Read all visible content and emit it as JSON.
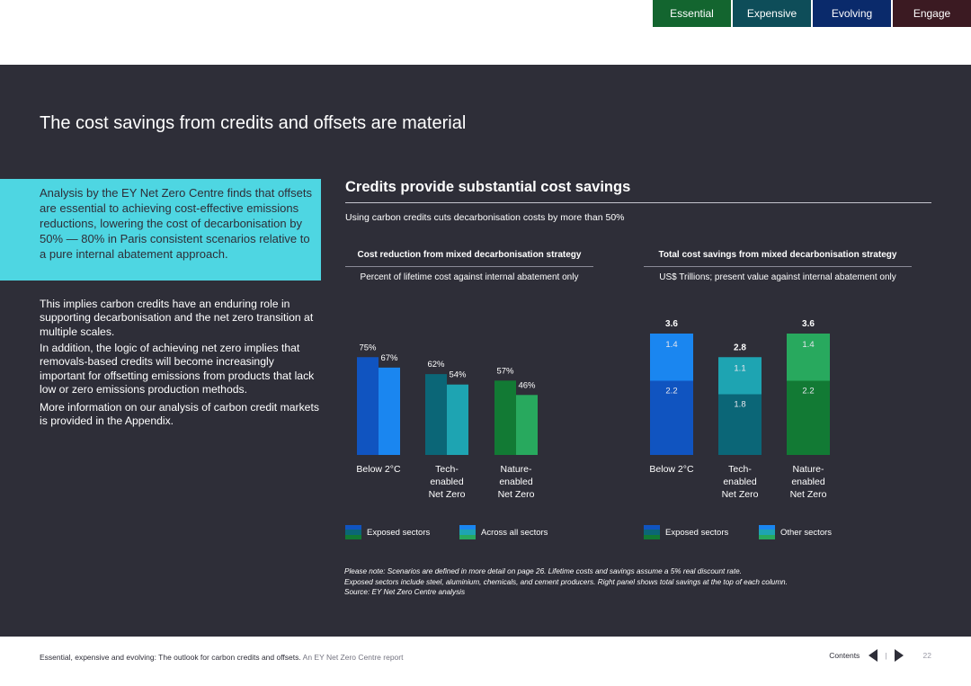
{
  "nav": {
    "tabs": [
      {
        "label": "Essential",
        "color": "#13652f"
      },
      {
        "label": "Expensive",
        "color": "#0e4d59"
      },
      {
        "label": "Evolving",
        "color": "#0a2a6b"
      },
      {
        "label": "Engage",
        "color": "#3b1a22"
      }
    ]
  },
  "page_title": "The cost savings from credits and offsets are material",
  "highlight_text": "Analysis by the EY Net Zero Centre finds that offsets are essential to achieving cost-effective emissions reductions, lowering the cost of decarbonisation by 50% — 80% in Paris consistent scenarios relative to a pure internal abatement approach.",
  "body_paragraphs": [
    "This implies carbon credits have an enduring role in supporting decarbonisation and the net zero transition at multiple scales.",
    "In addition, the logic of achieving net zero implies that removals-based credits will become increasingly important for offsetting emissions from products that lack low or zero emissions production methods.",
    "More information on our analysis of carbon credit markets is provided in the Appendix."
  ],
  "chart_section": {
    "heading": "Credits provide substantial cost savings",
    "subheading": "Using carbon credits cuts decarbonisation costs by more than 50%"
  },
  "chart_data": [
    {
      "type": "bar",
      "title": "Cost reduction from mixed decarbonisation strategy",
      "subtitle": "Percent of lifetime cost against internal abatement only",
      "categories": [
        "Below 2°C",
        "Tech-\nenabled\nNet Zero",
        "Nature-\nenabled\nNet Zero"
      ],
      "category_lines": [
        [
          "Below 2°C"
        ],
        [
          "Tech-",
          "enabled",
          "Net Zero"
        ],
        [
          "Nature-",
          "enabled",
          "Net Zero"
        ]
      ],
      "series": [
        {
          "name": "Exposed sectors",
          "values": [
            75,
            62,
            57
          ],
          "labels": [
            "75%",
            "62%",
            "57%"
          ]
        },
        {
          "name": "Across all sectors",
          "values": [
            67,
            54,
            46
          ],
          "labels": [
            "67%",
            "54%",
            "46%"
          ]
        }
      ],
      "ylim": [
        0,
        100
      ],
      "colors": [
        [
          "#1054c0",
          "#1a86f0"
        ],
        [
          "#0b6677",
          "#1ea4b2"
        ],
        [
          "#127a34",
          "#28a95e"
        ]
      ],
      "legend": [
        {
          "name": "Exposed sectors",
          "colors": [
            "#1054c0",
            "#0b6677",
            "#127a34"
          ]
        },
        {
          "name": "Across all sectors",
          "colors": [
            "#1a86f0",
            "#1ea4b2",
            "#28a95e"
          ]
        }
      ]
    },
    {
      "type": "bar",
      "stacked": true,
      "title": "Total cost savings from mixed decarbonisation strategy",
      "subtitle": "US$ Trillions; present value against internal abatement only",
      "categories": [
        "Below 2°C",
        "Tech-\nenabled\nNet Zero",
        "Nature-\nenabled\nNet Zero"
      ],
      "category_lines": [
        [
          "Below 2°C"
        ],
        [
          "Tech-",
          "enabled",
          "Net Zero"
        ],
        [
          "Nature-",
          "enabled",
          "Net Zero"
        ]
      ],
      "series": [
        {
          "name": "Exposed sectors",
          "values": [
            2.2,
            1.8,
            2.2
          ],
          "labels": [
            "2.2",
            "1.8",
            "2.2"
          ]
        },
        {
          "name": "Other sectors",
          "values": [
            1.4,
            1.1,
            1.4
          ],
          "labels": [
            "1.4",
            "1.1",
            "1.4"
          ]
        }
      ],
      "totals": [
        3.6,
        2.8,
        3.6
      ],
      "total_labels": [
        "3.6",
        "2.8",
        "3.6"
      ],
      "ylim": [
        0,
        4
      ],
      "colors": [
        [
          "#1054c0",
          "#1a86f0"
        ],
        [
          "#0b6677",
          "#1ea4b2"
        ],
        [
          "#127a34",
          "#28a95e"
        ]
      ],
      "legend": [
        {
          "name": "Exposed sectors",
          "colors": [
            "#1054c0",
            "#0b6677",
            "#127a34"
          ]
        },
        {
          "name": "Other sectors",
          "colors": [
            "#1a86f0",
            "#1ea4b2",
            "#28a95e"
          ]
        }
      ]
    }
  ],
  "notes": [
    "Please note: Scenarios are defined in more detail on page 26. Lifetime costs and savings assume a 5% real discount rate.",
    "Exposed sectors include steel, aluminium, chemicals, and cement producers. Right panel shows total savings at the top of each column.",
    "Source: EY Net Zero Centre analysis"
  ],
  "footer": {
    "title": "Essential, expensive and evolving: The outlook for carbon credits and offsets.",
    "subtitle": "An EY Net Zero Centre report",
    "contents_label": "Contents",
    "separator": "|",
    "page_number": "22"
  }
}
